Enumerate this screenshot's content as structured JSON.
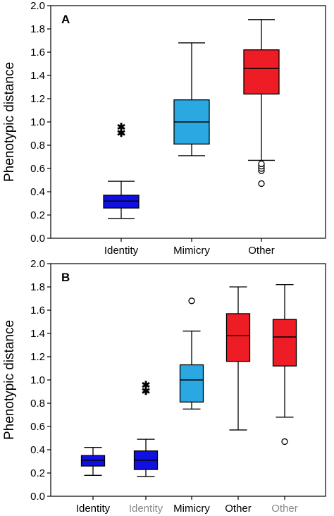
{
  "chart_data": [
    {
      "type": "box",
      "panel_label": "A",
      "ylabel": "Phenotypic distance",
      "ylim": [
        0,
        2.0
      ],
      "yticks": [
        "0.0",
        "0.2",
        "0.4",
        "0.6",
        "0.8",
        "1.0",
        "1.2",
        "1.4",
        "1.6",
        "1.8",
        "2.0"
      ],
      "grid": false,
      "categories": [
        {
          "label": "Identity",
          "color": "#1010e0",
          "label_color": "#000000",
          "whisker_low": 0.17,
          "q1": 0.26,
          "median": 0.32,
          "q3": 0.37,
          "whisker_high": 0.49,
          "outliers_circle": [],
          "outliers_star": [
            0.91,
            0.96
          ]
        },
        {
          "label": "Mimicry",
          "color": "#29a8e2",
          "label_color": "#000000",
          "whisker_low": 0.71,
          "q1": 0.81,
          "median": 1.0,
          "q3": 1.19,
          "whisker_high": 1.68,
          "outliers_circle": [],
          "outliers_star": []
        },
        {
          "label": "Other",
          "color": "#ee1c24",
          "label_color": "#000000",
          "whisker_low": 0.67,
          "q1": 1.24,
          "median": 1.46,
          "q3": 1.62,
          "whisker_high": 1.88,
          "outliers_circle": [
            0.47,
            0.58,
            0.6,
            0.62,
            0.64
          ],
          "outliers_star": []
        }
      ]
    },
    {
      "type": "box",
      "panel_label": "B",
      "ylabel": "Phenotypic distance",
      "ylim": [
        0,
        2.0
      ],
      "yticks": [
        "0.0",
        "0.2",
        "0.4",
        "0.6",
        "0.8",
        "1.0",
        "1.2",
        "1.4",
        "1.6",
        "1.8",
        "2.0"
      ],
      "grid": false,
      "categories": [
        {
          "label": "Identity",
          "color": "#1010e0",
          "label_color": "#000000",
          "whisker_low": 0.18,
          "q1": 0.26,
          "median": 0.31,
          "q3": 0.35,
          "whisker_high": 0.42,
          "outliers_circle": [],
          "outliers_star": []
        },
        {
          "label": "Identity",
          "color": "#1010e0",
          "label_color": "#8a8a8a",
          "whisker_low": 0.17,
          "q1": 0.23,
          "median": 0.31,
          "q3": 0.39,
          "whisker_high": 0.49,
          "outliers_circle": [],
          "outliers_star": [
            0.91,
            0.96
          ]
        },
        {
          "label": "Mimicry",
          "color": "#29a8e2",
          "label_color": "#000000",
          "whisker_low": 0.75,
          "q1": 0.81,
          "median": 1.0,
          "q3": 1.13,
          "whisker_high": 1.42,
          "outliers_circle": [
            1.68
          ],
          "outliers_star": []
        },
        {
          "label": "Other",
          "color": "#ee1c24",
          "label_color": "#000000",
          "whisker_low": 0.57,
          "q1": 1.16,
          "median": 1.38,
          "q3": 1.57,
          "whisker_high": 1.8,
          "outliers_circle": [],
          "outliers_star": []
        },
        {
          "label": "Other",
          "color": "#ee1c24",
          "label_color": "#8a8a8a",
          "whisker_low": 0.68,
          "q1": 1.12,
          "median": 1.37,
          "q3": 1.52,
          "whisker_high": 1.82,
          "outliers_circle": [
            0.47
          ],
          "outliers_star": []
        }
      ]
    }
  ]
}
